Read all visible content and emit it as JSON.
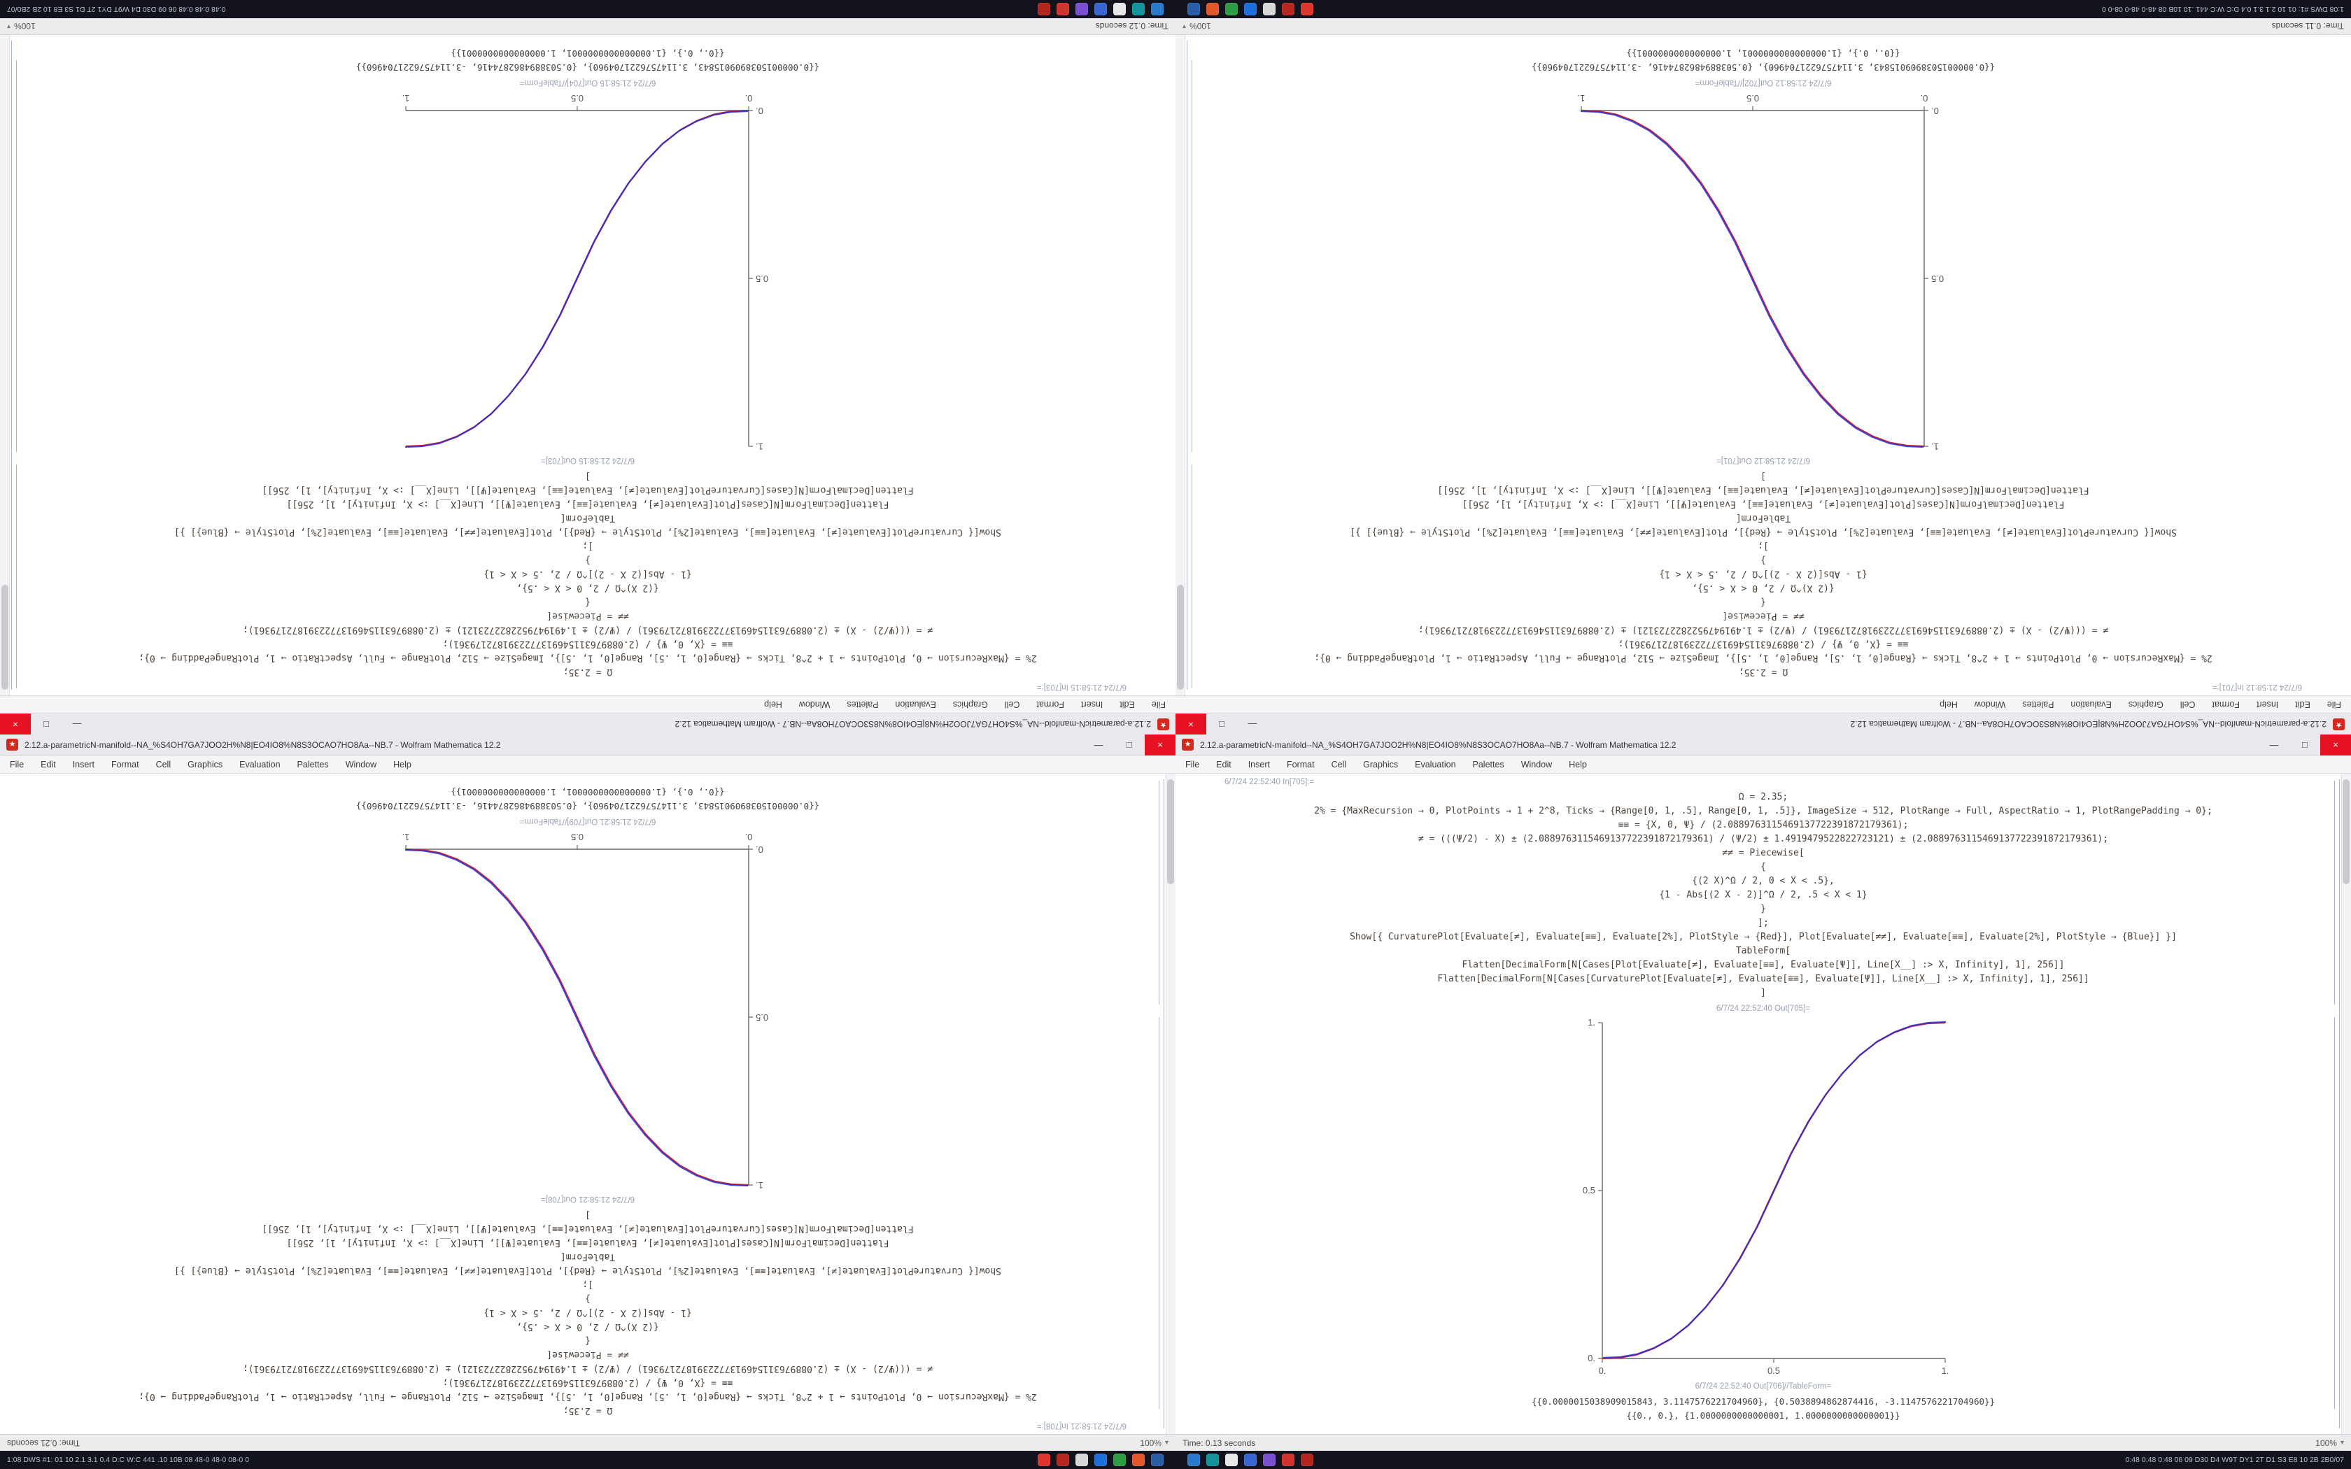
{
  "menu": {
    "items": [
      "File",
      "Edit",
      "Insert",
      "Format",
      "Cell",
      "Graphics",
      "Evaluation",
      "Palettes",
      "Window",
      "Help"
    ]
  },
  "window_controls": {
    "minimize": "—",
    "maximize": "□",
    "close": "×",
    "app_glyph": "★"
  },
  "taskbar": {
    "left_text": "1:08 DWS #1: 01 10 2.1 3.1 0.4 D:C W:C 441 .10 10B 08 48-0 48-0 08-0 0",
    "right_text": "0:48 0:48 0:48 06 09 D30 D4 W9T DY1 2T D1 S3 E8 10 2B 2B0/07",
    "group_split": 7,
    "icons": [
      {
        "name": "taskbar-icon-red-1",
        "color": "#dd352e"
      },
      {
        "name": "taskbar-icon-red-2",
        "color": "#b5271f"
      },
      {
        "name": "taskbar-icon-gray",
        "color": "#d8d8d8"
      },
      {
        "name": "taskbar-icon-blue-1",
        "color": "#1e6fd9"
      },
      {
        "name": "taskbar-icon-green",
        "color": "#2e9e44"
      },
      {
        "name": "taskbar-icon-orange",
        "color": "#e2572b"
      },
      {
        "name": "taskbar-icon-blue-2",
        "color": "#2b5ca8"
      },
      {
        "name": "taskbar-icon-blue-3",
        "color": "#2979cc"
      },
      {
        "name": "taskbar-icon-teal",
        "color": "#13939a"
      },
      {
        "name": "taskbar-icon-white",
        "color": "#e8e8ea"
      },
      {
        "name": "taskbar-icon-blue-4",
        "color": "#3a66d1"
      },
      {
        "name": "taskbar-icon-purple",
        "color": "#7a4fd0"
      },
      {
        "name": "taskbar-icon-red-3",
        "color": "#d0342c"
      },
      {
        "name": "taskbar-icon-red-4",
        "color": "#b3261e"
      }
    ]
  },
  "code": {
    "lines": [
      "Ω = 2.35;",
      "2% = {MaxRecursion → 0, PlotPoints → 1 + 2^8, Ticks → {Range[0, 1, .5], Range[0, 1, .5]}, ImageSize → 512, PlotRange → Full, AspectRatio → 1, PlotRangePadding → 0};",
      "≡≡ = {X, 0, Ψ} / (2.0889763115469137722391872179361);",
      "≠ = (((Ψ/2) - X) ± (2.0889763115469137722391872179361) / (Ψ/2) ± 1.4919479522822723121) ± (2.0889763115469137722391872179361);",
      "≠≠ = Piecewise[",
      "{",
      "{(2 X)^Ω / 2, 0 < X < .5},",
      "{1 - Abs[(2 X - 2)]^Ω / 2, .5 < X < 1}",
      "}",
      "];",
      "Show[{ CurvaturePlot[Evaluate[≠], Evaluate[≡≡], Evaluate[2%], PlotStyle → {Red}],  Plot[Evaluate[≠≠], Evaluate[≡≡], Evaluate[2%], PlotStyle → {Blue}] }]",
      "TableForm[",
      "Flatten[DecimalForm[N[Cases[Plot[Evaluate[≠], Evaluate[≡≡], Evaluate[Ψ]], Line[X__] :> X, Infinity], 1], 256]]",
      "Flatten[DecimalForm[N[Cases[CurvaturePlot[Evaluate[≠], Evaluate[≡≡], Evaluate[Ψ]], Line[X__] :> X, Infinity], 1], 256]]",
      "]"
    ]
  },
  "windows": {
    "tl": {
      "orientation": "rotated-180",
      "title": "2.12.a-parametricN-manifold--NA_%S4OH7GA7JOO2H%N8|EO4IO8%N8S3OCAO7HO8Aa--NB.7 - Wolfram Mathematica 12.2",
      "in_caption": "6/7/24 21:58:15 In[703]:=",
      "out_caption": "6/7/24 21:58:15 Out[703]=",
      "table_caption": "6/7/24 21:58:15 Out[704]//TableForm=",
      "results": [
        "{{0.0000015038909015843, 3.1147576221704960}, {0.5038894862874416, -3.1147576221704960}}",
        "{{0., 0.}, {1.0000000000000001, 1.0000000000000001}}"
      ],
      "time": "Time: 0.12 seconds",
      "zoom": "100%",
      "plot": "increasing"
    },
    "tr": {
      "orientation": "rotated-180",
      "title": "2.12.a-parametricN-manifold--NA_%S4OH7GA7JOO2H%N8|EO4IO8%N8S3OCAO7HO8Aa--NB.7 - Wolfram Mathematica 12.2",
      "in_caption": "6/7/24 21:58:12 In[701]:=",
      "out_caption": "6/7/24 21:58:12 Out[701]=",
      "table_caption": "6/7/24 21:58:12 Out[702]//TableForm=",
      "results": [
        "{{0.0000015038909015843, 3.1147576221704960}, {0.5038894862874416, -3.1147576221704960}}",
        "{{0., 0.}, {1.0000000000000001, 1.0000000000000001}}"
      ],
      "time": "Time: 0.11 seconds",
      "zoom": "100%",
      "plot": "decreasing"
    },
    "bl": {
      "orientation": "content-rotated",
      "title": "2.12.a-parametricN-manifold--NA_%S4OH7GA7JOO2H%N8|EO4IO8%N8S3OCAO7HO8Aa--NB.7 - Wolfram Mathematica 12.2",
      "in_caption": "6/7/24 21:58:21 In[708]:=",
      "out_caption": "6/7/24 21:58:21 Out[708]=",
      "table_caption": "6/7/24 21:58:21 Out[709]//TableForm=",
      "results": [
        "{{0.0000015038909015843, 3.1147576221704960}, {0.5038894862874416, -3.1147576221704960}}",
        "{{0., 0.}, {1.0000000000000001, 1.0000000000000001}}"
      ],
      "time": "Time: 0.21 seconds",
      "zoom": "100%",
      "plot": "decreasing"
    },
    "br": {
      "orientation": "normal",
      "title": "2.12.a-parametricN-manifold--NA_%S4OH7GA7JOO2H%N8|EO4IO8%N8S3OCAO7HO8Aa--NB.7 - Wolfram Mathematica 12.2",
      "in_caption": "6/7/24 22:52:40 In[705]:=",
      "out_caption": "6/7/24 22:52:40 Out[705]=",
      "table_caption": "6/7/24 22:52:40 Out[706]//TableForm=",
      "results": [
        "{{0.0000015038909015843, 3.1147576221704960}, {0.5038894862874416, -3.1147576221704960}}",
        "{{0., 0.}, {1.0000000000000001, 1.0000000000000001}}"
      ],
      "time": "Time: 0.13 seconds",
      "zoom": "100%",
      "plot": "increasing"
    }
  },
  "chart_data": {
    "type": "line",
    "title": "",
    "xlabel": "",
    "ylabel": "",
    "xlim": [
      0,
      1
    ],
    "ylim": [
      0,
      1
    ],
    "grid": false,
    "legend": "none",
    "axes": "left-bottom",
    "xticks": [
      "0.",
      "0.5",
      "1."
    ],
    "yticks": [
      "0.",
      "0.5",
      "1."
    ],
    "tick_values": [
      0,
      0.5,
      1
    ],
    "x": [
      0,
      0.05,
      0.1,
      0.15,
      0.2,
      0.25,
      0.3,
      0.35,
      0.4,
      0.45,
      0.5,
      0.55,
      0.6,
      0.65,
      0.7,
      0.75,
      0.8,
      0.85,
      0.9,
      0.95,
      1
    ],
    "shapes": {
      "increasing": [
        0,
        0.002,
        0.011,
        0.03,
        0.058,
        0.098,
        0.151,
        0.216,
        0.296,
        0.39,
        0.5,
        0.61,
        0.704,
        0.784,
        0.849,
        0.902,
        0.942,
        0.97,
        0.989,
        0.998,
        1
      ],
      "decreasing": [
        1,
        0.998,
        0.989,
        0.97,
        0.942,
        0.902,
        0.849,
        0.784,
        0.704,
        0.61,
        0.5,
        0.39,
        0.296,
        0.216,
        0.151,
        0.098,
        0.058,
        0.03,
        0.011,
        0.002,
        0
      ]
    },
    "plots": [
      {
        "window": "tl",
        "series": [
          {
            "name": "CurvaturePlot (Red)",
            "color": "#d42525",
            "shape": "increasing"
          },
          {
            "name": "Plot (Blue)",
            "color": "#2b2bd4",
            "shape": "increasing"
          }
        ]
      },
      {
        "window": "tr",
        "series": [
          {
            "name": "CurvaturePlot (Red)",
            "color": "#d42525",
            "shape": "decreasing"
          },
          {
            "name": "Plot (Blue)",
            "color": "#2b2bd4",
            "shape": "decreasing"
          }
        ]
      },
      {
        "window": "bl",
        "series": [
          {
            "name": "CurvaturePlot (Red)",
            "color": "#d42525",
            "shape": "decreasing"
          },
          {
            "name": "Plot (Blue)",
            "color": "#2b2bd4",
            "shape": "decreasing"
          }
        ]
      },
      {
        "window": "br",
        "series": [
          {
            "name": "CurvaturePlot (Red)",
            "color": "#d42525",
            "shape": "increasing"
          },
          {
            "name": "Plot (Blue)",
            "color": "#2b2bd4",
            "shape": "increasing"
          }
        ]
      }
    ]
  },
  "colors": {
    "taskbar_bg": "#12131d",
    "titlebar_bg": "#e9e9ee",
    "close_red": "#e81123",
    "app_icon_red": "#d22a1e",
    "curve_red": "#d42525",
    "curve_blue": "#2b2bd4"
  }
}
